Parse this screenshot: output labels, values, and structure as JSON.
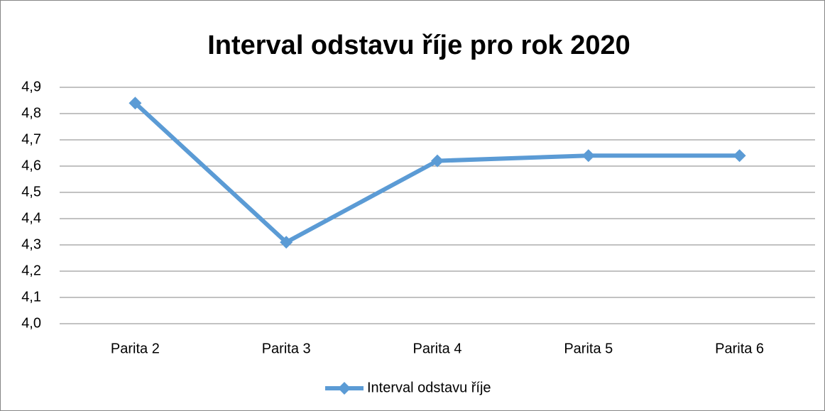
{
  "chart_data": {
    "type": "line",
    "title": "Interval odstavu říje pro rok 2020",
    "categories": [
      "Parita 2",
      "Parita 3",
      "Parita 4",
      "Parita 5",
      "Parita 6"
    ],
    "series": [
      {
        "name": "Interval odstavu říje",
        "color": "#5b9bd5",
        "values": [
          4.84,
          4.31,
          4.62,
          4.64,
          4.64
        ]
      }
    ],
    "ylim": [
      4.0,
      4.9
    ],
    "yticks": [
      {
        "value": 4.0,
        "label": "4,0"
      },
      {
        "value": 4.1,
        "label": "4,1"
      },
      {
        "value": 4.2,
        "label": "4,2"
      },
      {
        "value": 4.3,
        "label": "4,3"
      },
      {
        "value": 4.4,
        "label": "4,4"
      },
      {
        "value": 4.5,
        "label": "4,5"
      },
      {
        "value": 4.6,
        "label": "4,6"
      },
      {
        "value": 4.7,
        "label": "4,7"
      },
      {
        "value": 4.8,
        "label": "4,8"
      },
      {
        "value": 4.9,
        "label": "4,9"
      }
    ],
    "grid": true,
    "legend": "bottom"
  }
}
